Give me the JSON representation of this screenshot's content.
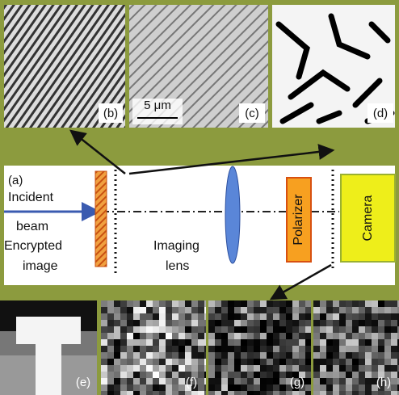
{
  "panels": {
    "a": "(a)",
    "b": "(b)",
    "c": "(c)",
    "d": "(d)",
    "e": "(e)",
    "f": "(f)",
    "g": "(g)",
    "h": "(h)"
  },
  "scale_bar": "5 μm",
  "labels": {
    "incident_beam": [
      "Incident",
      "beam"
    ],
    "encrypted_image": [
      "Encrypted",
      "image"
    ],
    "imaging_lens": [
      "Imaging",
      "lens"
    ],
    "polarizer": "Polarizer",
    "camera": "Camera"
  }
}
